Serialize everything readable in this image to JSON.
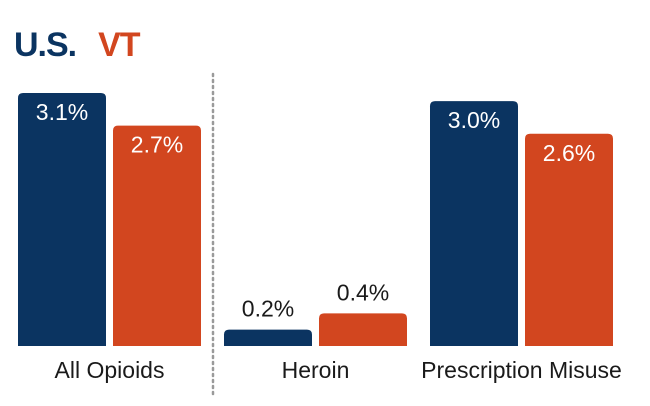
{
  "legend": {
    "us": "U.S.",
    "vt": "VT"
  },
  "colors": {
    "us": "#0b3461",
    "vt": "#d2461f",
    "divider": "#9a9a9a"
  },
  "chart_data": {
    "type": "bar",
    "categories": [
      "All Opioids",
      "Heroin",
      "Prescription Misuse"
    ],
    "series": [
      {
        "name": "U.S.",
        "values": [
          3.1,
          0.2,
          3.0
        ],
        "labels": [
          "3.1%",
          "0.2%",
          "3.0%"
        ]
      },
      {
        "name": "VT",
        "values": [
          2.7,
          0.4,
          2.6
        ],
        "labels": [
          "2.7%",
          "0.4%",
          "2.6%"
        ]
      }
    ],
    "ylim": [
      0,
      3.1
    ],
    "grid": false,
    "legend_position": "top-left"
  }
}
